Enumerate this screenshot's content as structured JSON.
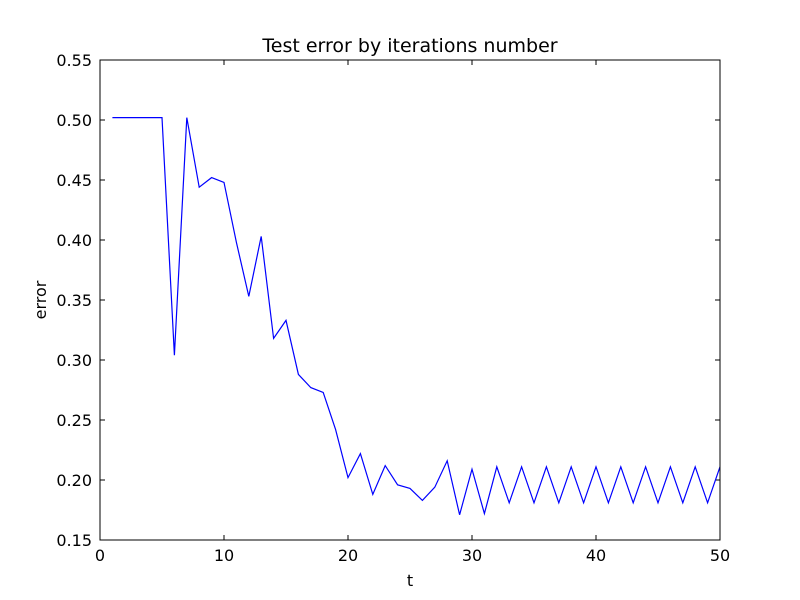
{
  "chart_data": {
    "type": "line",
    "title": "Test error by iterations number",
    "xlabel": "t",
    "ylabel": "error",
    "xlim": [
      0,
      50
    ],
    "ylim": [
      0.15,
      0.55
    ],
    "x_ticks": [
      0,
      10,
      20,
      30,
      40,
      50
    ],
    "y_ticks": [
      0.15,
      0.2,
      0.25,
      0.3,
      0.35,
      0.4,
      0.45,
      0.5,
      0.55
    ],
    "x_tick_labels": [
      "0",
      "10",
      "20",
      "30",
      "40",
      "50"
    ],
    "y_tick_labels": [
      "0.15",
      "0.20",
      "0.25",
      "0.30",
      "0.35",
      "0.40",
      "0.45",
      "0.50",
      "0.55"
    ],
    "grid": false,
    "legend": "none",
    "colors": {
      "line": "#0000ff",
      "axes": "#000000",
      "background": "#ffffff"
    },
    "series": [
      {
        "x": [
          1,
          2,
          3,
          4,
          5,
          6,
          7,
          8,
          9,
          10,
          11,
          12,
          13,
          14,
          15,
          16,
          17,
          18,
          19,
          20,
          21,
          22,
          23,
          24,
          25,
          26,
          27,
          28,
          29,
          30,
          31,
          32,
          33,
          34,
          35,
          36,
          37,
          38,
          39,
          40,
          41,
          42,
          43,
          44,
          45,
          46,
          47,
          48,
          49,
          50
        ],
        "values": [
          0.502,
          0.502,
          0.502,
          0.502,
          0.502,
          0.304,
          0.502,
          0.444,
          0.452,
          0.448,
          0.398,
          0.353,
          0.403,
          0.318,
          0.333,
          0.288,
          0.277,
          0.273,
          0.242,
          0.202,
          0.222,
          0.188,
          0.212,
          0.196,
          0.193,
          0.183,
          0.194,
          0.216,
          0.171,
          0.209,
          0.172,
          0.211,
          0.181,
          0.211,
          0.181,
          0.211,
          0.181,
          0.211,
          0.181,
          0.211,
          0.181,
          0.211,
          0.181,
          0.211,
          0.181,
          0.211,
          0.181,
          0.211,
          0.181,
          0.211
        ]
      }
    ]
  }
}
